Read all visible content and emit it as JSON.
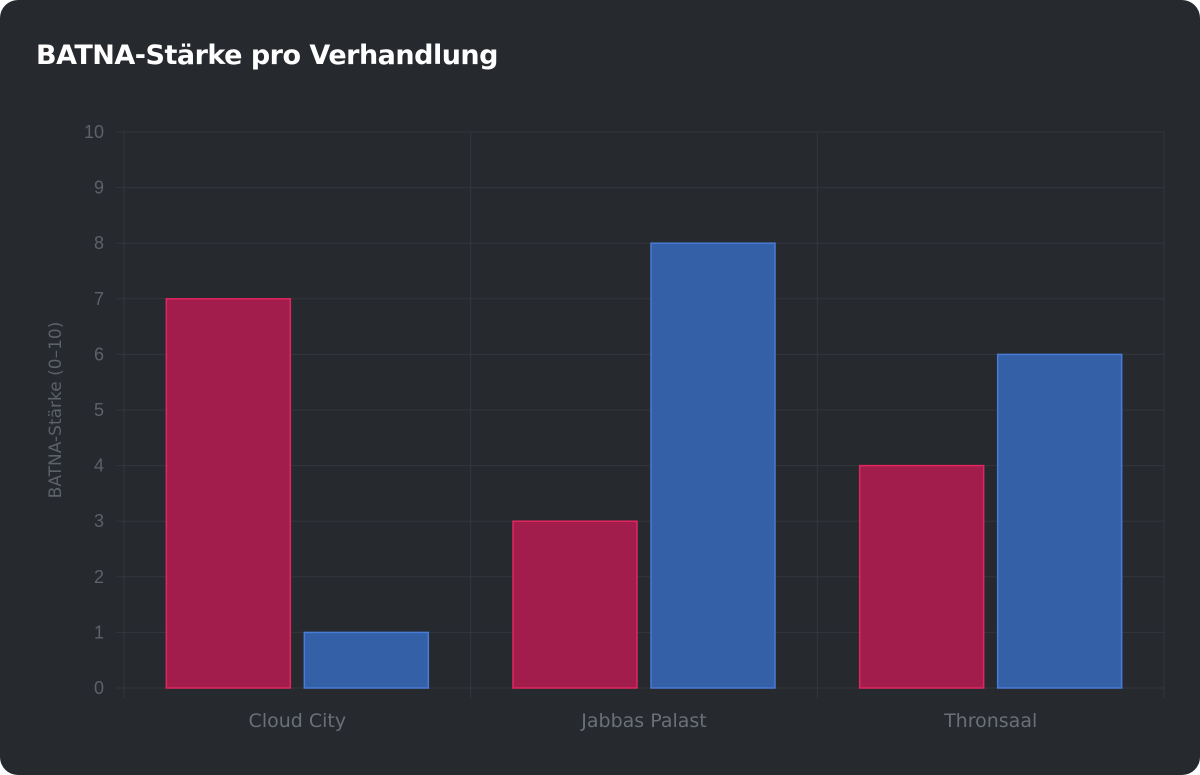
{
  "colors": {
    "background": "#26292e",
    "series_1": "#a21d4c",
    "series_1_stroke": "#e0265f",
    "series_2": "#3460a8",
    "series_2_stroke": "#4a7bd6",
    "grid": "#33363c"
  },
  "chart_data": {
    "type": "bar",
    "title": "BATNA-Stärke pro Verhandlung",
    "xlabel": "",
    "ylabel": "BATNA-Stärke (0–10)",
    "categories": [
      "Cloud City",
      "Jabbas Palast",
      "Thronsaal"
    ],
    "series": [
      {
        "values": [
          7,
          3,
          4
        ]
      },
      {
        "values": [
          1,
          8,
          6
        ]
      }
    ],
    "ylim": [
      0,
      10
    ],
    "yticks": [
      0,
      1,
      2,
      3,
      4,
      5,
      6,
      7,
      8,
      9,
      10
    ],
    "grid": true,
    "legend": "none"
  }
}
